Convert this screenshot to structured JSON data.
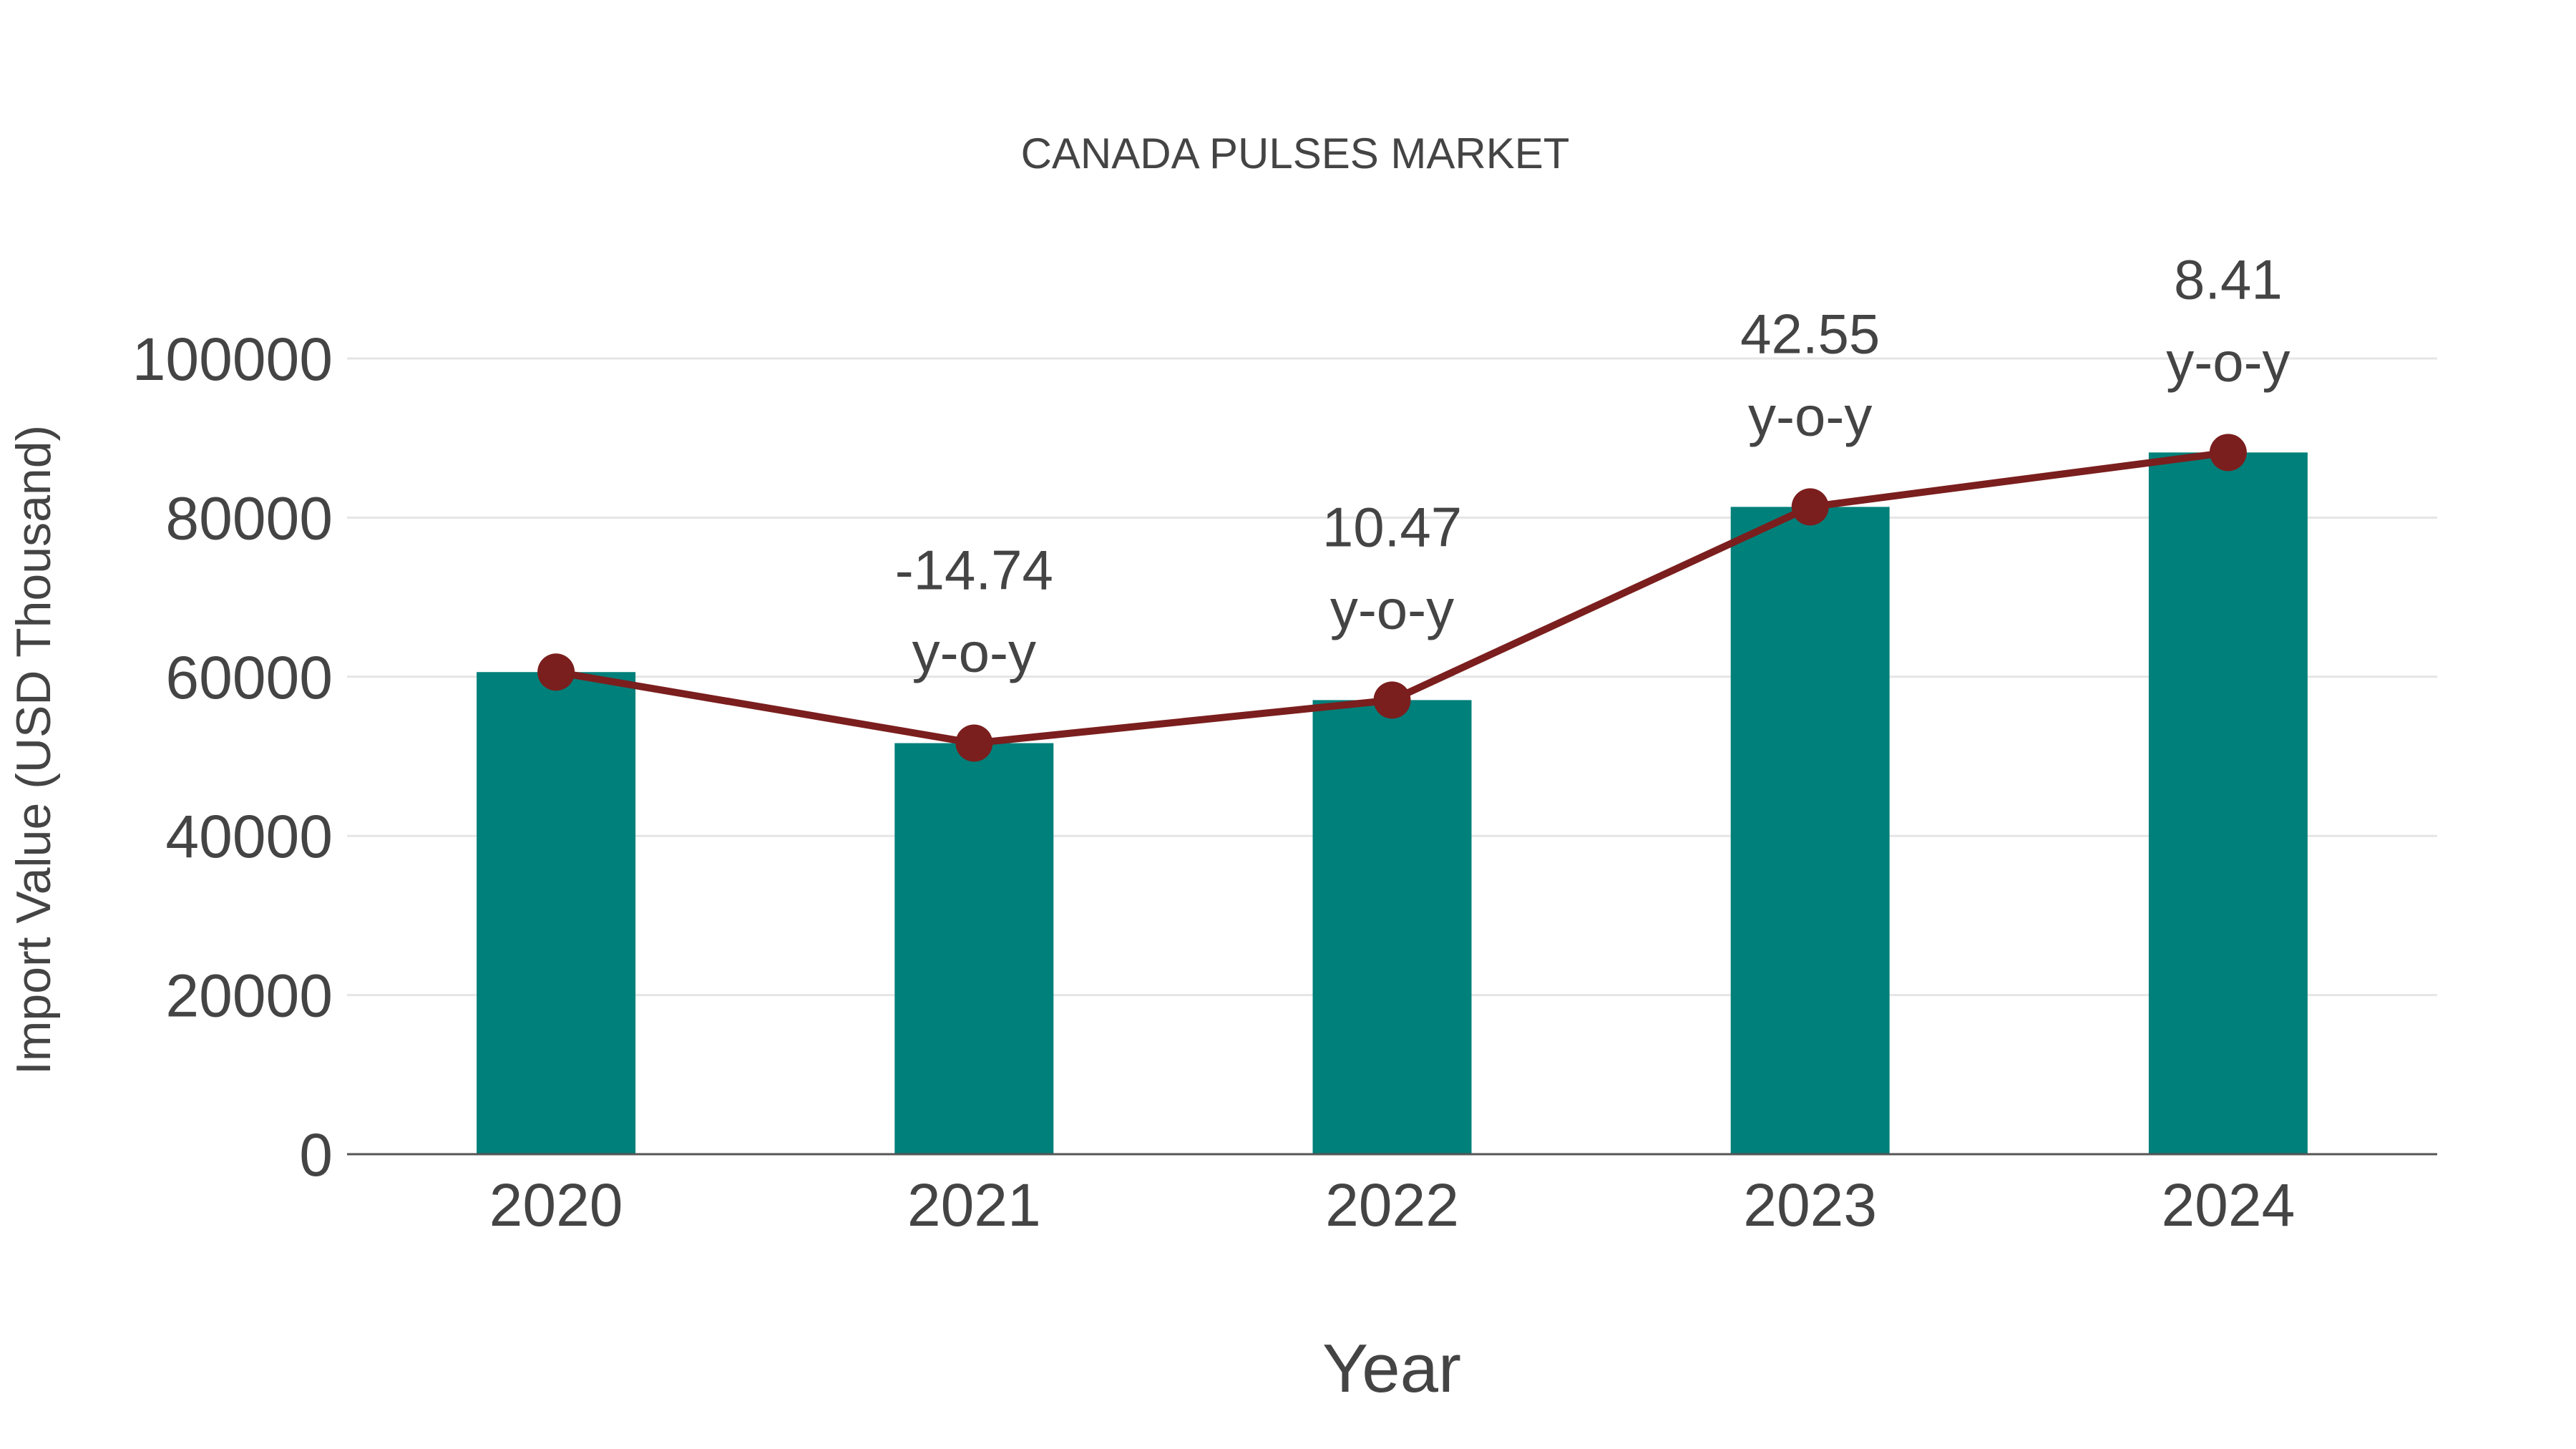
{
  "chart_data": {
    "type": "bar",
    "title": "CANADA PULSES MARKET",
    "xlabel": "Year",
    "ylabel": "Import Value (USD Thousand)",
    "categories": [
      "2020",
      "2021",
      "2022",
      "2023",
      "2024"
    ],
    "series": [
      {
        "name": "Import Value",
        "type": "bar",
        "values": [
          60590,
          51660,
          57070,
          81350,
          88190
        ]
      },
      {
        "name": "Import Value trend",
        "type": "line",
        "values": [
          60590,
          51660,
          57070,
          81350,
          88190
        ]
      }
    ],
    "annotations": [
      {
        "category": "2021",
        "value": "-14.74",
        "unit": "y-o-y"
      },
      {
        "category": "2022",
        "value": "10.47",
        "unit": "y-o-y"
      },
      {
        "category": "2023",
        "value": "42.55",
        "unit": "y-o-y"
      },
      {
        "category": "2024",
        "value": "8.41",
        "unit": "y-o-y"
      }
    ],
    "yticks": [
      "0",
      "20000",
      "40000",
      "60000",
      "80000",
      "100000"
    ],
    "ylim": [
      0,
      100000
    ],
    "grid": true,
    "colors": {
      "bar": "#00807A",
      "line": "#7B1E1E",
      "text": "#444444",
      "grid": "#E5E5E5"
    }
  }
}
